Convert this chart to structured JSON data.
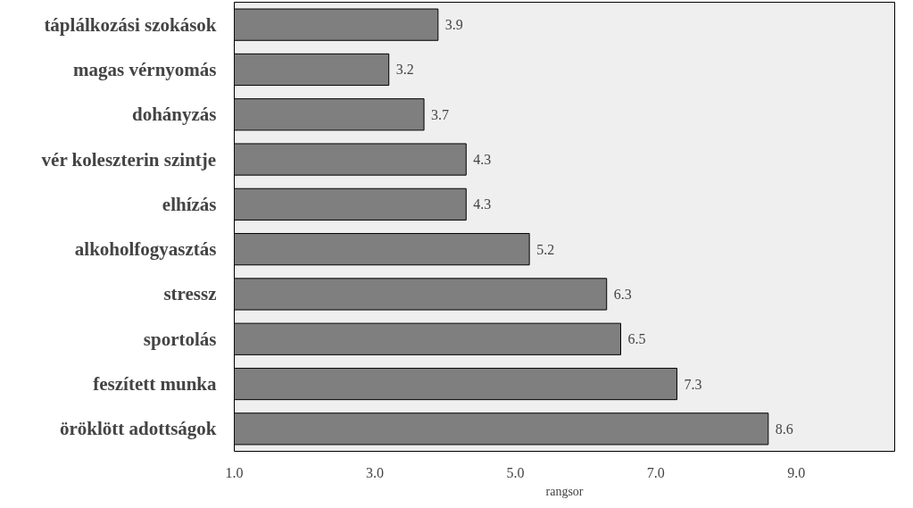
{
  "chart_data": {
    "type": "bar",
    "orientation": "horizontal",
    "xlabel": "rangsor",
    "categories": [
      "táplálkozási szokások",
      "magas vérnyomás",
      "dohányzás",
      "vér koleszterin szintje",
      "elhízás",
      "alkoholfogyasztás",
      "stressz",
      "sportolás",
      "feszített munka",
      "öröklött adottságok"
    ],
    "values": [
      3.9,
      3.2,
      3.7,
      4.3,
      4.3,
      5.2,
      6.3,
      6.5,
      7.3,
      8.6
    ],
    "color": "#7f7f7f",
    "data_labels": true,
    "grid": false,
    "xlim": [
      1,
      10.4
    ],
    "xticks": [
      {
        "value": 1,
        "label": "1.0"
      },
      {
        "value": 3,
        "label": "3.0"
      },
      {
        "value": 5,
        "label": "5.0"
      },
      {
        "value": 7,
        "label": "7.0"
      },
      {
        "value": 9,
        "label": "9.0"
      }
    ]
  }
}
